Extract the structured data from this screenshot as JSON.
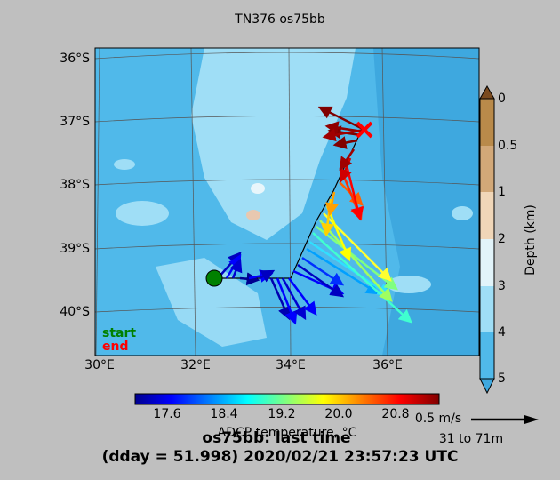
{
  "title": "TN376 os75bb",
  "map": {
    "lat_labels": [
      "36°S",
      "37°S",
      "38°S",
      "39°S",
      "40°S"
    ],
    "lon_labels": [
      "30°E",
      "32°E",
      "34°E",
      "36°E"
    ],
    "start_label": "start",
    "end_label": "end"
  },
  "depth_colorbar": {
    "label": "Depth (km)",
    "ticks": [
      "0",
      "0.5",
      "1",
      "2",
      "3",
      "4",
      "5"
    ]
  },
  "temperature_colorbar": {
    "label": "ADCP temperature, °C",
    "ticks": [
      "17.6",
      "18.4",
      "19.2",
      "20.0",
      "20.8"
    ]
  },
  "scale": {
    "speed": "0.5 m/s",
    "depth_range": "31 to 71m"
  },
  "footer": {
    "line1": "os75bb: last time",
    "line2": "(dday = 51.998) 2020/02/21 23:57:23 UTC"
  }
}
